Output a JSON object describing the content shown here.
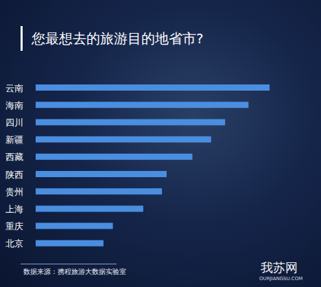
{
  "chart_data": {
    "type": "bar",
    "title": "您最想去的旅游目的地省市?",
    "categories": [
      "云南",
      "海南",
      "四川",
      "新疆",
      "西藏",
      "陕西",
      "贵州",
      "上海",
      "重庆",
      "北京"
    ],
    "values": [
      100,
      91,
      81,
      75,
      67,
      56,
      54,
      46,
      33,
      29
    ],
    "color": "#4a8ee0",
    "xlim": [
      0,
      100
    ],
    "orientation": "horizontal",
    "tick_labels": "y",
    "annotations": [
      "数据来源：携程旅游大数据实验室",
      "我苏网",
      "OURJIANGSU.COM"
    ]
  }
}
